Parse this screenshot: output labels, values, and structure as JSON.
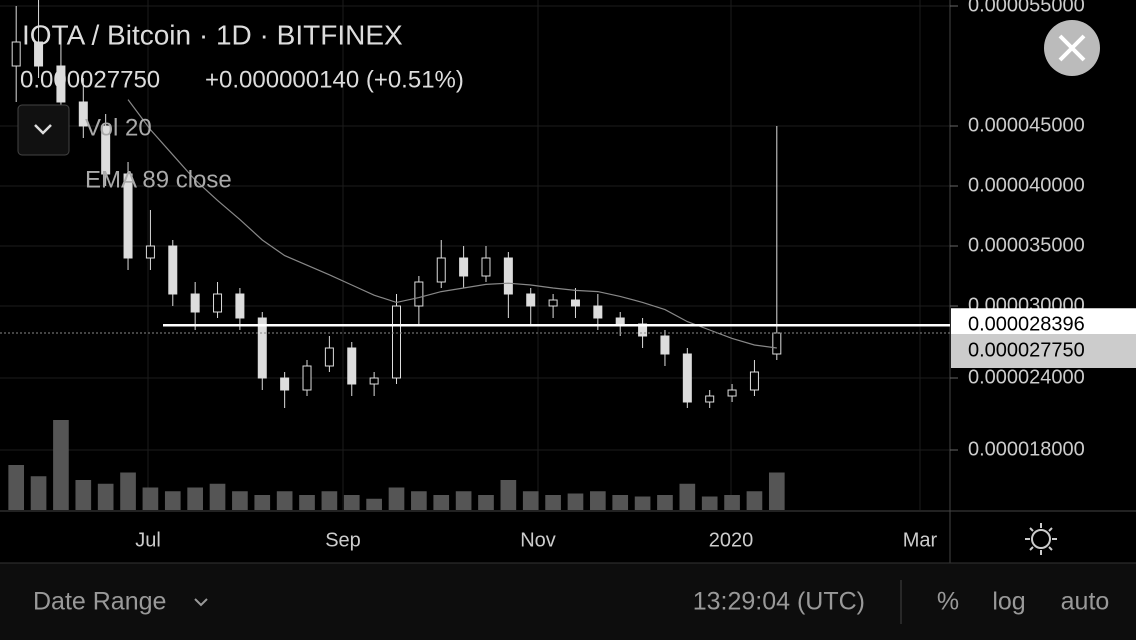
{
  "header": {
    "title": "IOTA / Bitcoin · 1D · BITFINEX",
    "last_price": "0.000027750",
    "change": "+0.000000140 (+0.51%)",
    "indicators": [
      "Vol 20",
      "EMA 89 close"
    ]
  },
  "chart_data": {
    "type": "candlestick",
    "open": [
      5e-05,
      5.2e-05,
      5e-05,
      4.7e-05,
      4.5e-05,
      4.1e-05,
      3.4e-05,
      3.5e-05,
      3.1e-05,
      2.95e-05,
      3.1e-05,
      2.9e-05,
      2.4e-05,
      2.3e-05,
      2.5e-05,
      2.65e-05,
      2.35e-05,
      2.4e-05,
      3e-05,
      3.2e-05,
      3.4e-05,
      3.25e-05,
      3.4e-05,
      3.1e-05,
      3e-05,
      3.05e-05,
      3e-05,
      2.9e-05,
      2.85e-05,
      2.75e-05,
      2.6e-05,
      2.2e-05,
      2.25e-05,
      2.3e-05,
      2.6e-05
    ],
    "high": [
      5.5e-05,
      5.55e-05,
      5.3e-05,
      4.9e-05,
      4.6e-05,
      4.2e-05,
      3.8e-05,
      3.55e-05,
      3.2e-05,
      3.2e-05,
      3.15e-05,
      2.95e-05,
      2.45e-05,
      2.55e-05,
      2.75e-05,
      2.7e-05,
      2.45e-05,
      3.1e-05,
      3.25e-05,
      3.55e-05,
      3.5e-05,
      3.5e-05,
      3.45e-05,
      3.15e-05,
      3.1e-05,
      3.15e-05,
      3.1e-05,
      2.95e-05,
      2.9e-05,
      2.8e-05,
      2.65e-05,
      2.3e-05,
      2.35e-05,
      2.55e-05,
      4.5e-05
    ],
    "low": [
      4.7e-05,
      4.9e-05,
      4.6e-05,
      4.4e-05,
      4e-05,
      3.3e-05,
      3.3e-05,
      3e-05,
      2.8e-05,
      2.9e-05,
      2.8e-05,
      2.3e-05,
      2.15e-05,
      2.25e-05,
      2.45e-05,
      2.25e-05,
      2.25e-05,
      2.35e-05,
      2.85e-05,
      3.15e-05,
      3.15e-05,
      3.2e-05,
      2.9e-05,
      2.85e-05,
      2.9e-05,
      2.9e-05,
      2.8e-05,
      2.75e-05,
      2.65e-05,
      2.5e-05,
      2.15e-05,
      2.15e-05,
      2.2e-05,
      2.25e-05,
      2.55e-05
    ],
    "close": [
      5.2e-05,
      5e-05,
      4.7e-05,
      4.5e-05,
      4.1e-05,
      3.4e-05,
      3.5e-05,
      3.1e-05,
      2.95e-05,
      3.1e-05,
      2.9e-05,
      2.4e-05,
      2.3e-05,
      2.5e-05,
      2.65e-05,
      2.35e-05,
      2.4e-05,
      3e-05,
      3.2e-05,
      3.4e-05,
      3.25e-05,
      3.4e-05,
      3.1e-05,
      3e-05,
      3.05e-05,
      3e-05,
      2.9e-05,
      2.85e-05,
      2.75e-05,
      2.6e-05,
      2.2e-05,
      2.25e-05,
      2.3e-05,
      2.45e-05,
      2.775e-05
    ],
    "ema": [
      null,
      null,
      null,
      null,
      null,
      4.72e-05,
      4.47e-05,
      4.26e-05,
      4.05e-05,
      3.88e-05,
      3.72e-05,
      3.55e-05,
      3.42e-05,
      3.34e-05,
      3.26e-05,
      3.175e-05,
      3.09e-05,
      3.03e-05,
      3.07e-05,
      3.12e-05,
      3.15e-05,
      3.18e-05,
      3.19e-05,
      3.175e-05,
      3.15e-05,
      3.13e-05,
      3.12e-05,
      3.08e-05,
      3.03e-05,
      2.97e-05,
      2.87e-05,
      2.8e-05,
      2.73e-05,
      2.675e-05,
      2.65e-05
    ],
    "volume": [
      60,
      45,
      120,
      40,
      35,
      50,
      30,
      25,
      30,
      35,
      25,
      20,
      25,
      20,
      25,
      20,
      15,
      30,
      25,
      20,
      25,
      20,
      40,
      25,
      20,
      22,
      25,
      20,
      18,
      20,
      35,
      18,
      20,
      25,
      50
    ],
    "ylim": [
      1.3e-05,
      5.55e-05
    ],
    "yticks": [
      {
        "value": 5.5e-05,
        "label": "0.000055000"
      },
      {
        "value": 4.5e-05,
        "label": "0.000045000"
      },
      {
        "value": 4e-05,
        "label": "0.000040000"
      },
      {
        "value": 3.5e-05,
        "label": "0.000035000"
      },
      {
        "value": 3e-05,
        "label": "0.000030000"
      },
      {
        "value": 2.4e-05,
        "label": "0.000024000"
      },
      {
        "value": 1.8e-05,
        "label": "0.000018000"
      }
    ],
    "xlabels": [
      "Jul",
      "Sep",
      "Nov",
      "2020",
      "Mar"
    ],
    "lines": [
      {
        "value": 2.8396e-05,
        "label": "0.000028396"
      },
      {
        "value": 2.775e-05,
        "label": "0.000027750"
      }
    ]
  },
  "footer": {
    "date_range": "Date Range",
    "time": "13:29:04 (UTC)",
    "buttons": [
      "%",
      "log",
      "auto"
    ]
  }
}
